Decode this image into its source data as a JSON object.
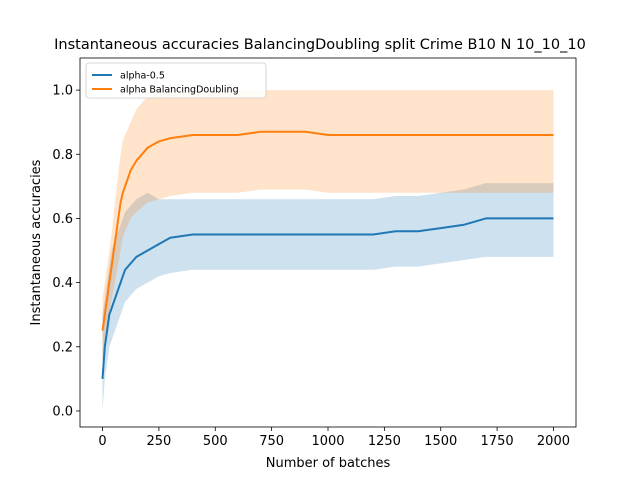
{
  "chart_data": {
    "type": "line",
    "title": "Instantaneous accuracies BalancingDoubling split Crime B10 N 10_10_10",
    "xlabel": "Number of batches",
    "ylabel": "Instantaneous accuracies",
    "xlim": [
      -100,
      2100
    ],
    "ylim": [
      -0.05,
      1.1
    ],
    "xticks": [
      0,
      250,
      500,
      750,
      1000,
      1250,
      1500,
      1750,
      2000
    ],
    "yticks": [
      0.0,
      0.2,
      0.4,
      0.6,
      0.8,
      1.0
    ],
    "xtick_labels": [
      "0",
      "250",
      "500",
      "750",
      "1000",
      "1250",
      "1500",
      "1750",
      "2000"
    ],
    "ytick_labels": [
      "0.0",
      "0.2",
      "0.4",
      "0.6",
      "0.8",
      "1.0"
    ],
    "grid": false,
    "legend_position": "top-left",
    "series": [
      {
        "name": "alpha-0.5",
        "color": "#1f77b4",
        "x": [
          0,
          10,
          20,
          30,
          40,
          50,
          60,
          70,
          80,
          90,
          100,
          125,
          150,
          200,
          250,
          300,
          400,
          500,
          600,
          700,
          800,
          900,
          1000,
          1100,
          1200,
          1300,
          1400,
          1500,
          1600,
          1700,
          1800,
          1900,
          2000
        ],
        "y": [
          0.1,
          0.2,
          0.25,
          0.3,
          0.32,
          0.34,
          0.36,
          0.38,
          0.4,
          0.42,
          0.44,
          0.46,
          0.48,
          0.5,
          0.52,
          0.54,
          0.55,
          0.55,
          0.55,
          0.55,
          0.55,
          0.55,
          0.55,
          0.55,
          0.55,
          0.56,
          0.56,
          0.57,
          0.58,
          0.6,
          0.6,
          0.6,
          0.6
        ],
        "band_low": [
          0.0,
          0.1,
          0.15,
          0.2,
          0.22,
          0.24,
          0.26,
          0.28,
          0.3,
          0.32,
          0.34,
          0.36,
          0.38,
          0.4,
          0.42,
          0.43,
          0.44,
          0.44,
          0.44,
          0.44,
          0.44,
          0.44,
          0.44,
          0.44,
          0.44,
          0.45,
          0.45,
          0.46,
          0.47,
          0.48,
          0.48,
          0.48,
          0.48
        ],
        "band_high": [
          0.3,
          0.35,
          0.4,
          0.45,
          0.5,
          0.52,
          0.54,
          0.56,
          0.58,
          0.6,
          0.62,
          0.64,
          0.66,
          0.68,
          0.66,
          0.66,
          0.66,
          0.66,
          0.66,
          0.66,
          0.66,
          0.66,
          0.66,
          0.66,
          0.66,
          0.67,
          0.67,
          0.68,
          0.69,
          0.71,
          0.71,
          0.71,
          0.71
        ]
      },
      {
        "name": "alpha BalancingDoubling",
        "color": "#ff7f0e",
        "x": [
          0,
          10,
          20,
          30,
          40,
          50,
          60,
          70,
          80,
          90,
          100,
          125,
          150,
          200,
          250,
          300,
          400,
          500,
          600,
          700,
          800,
          900,
          1000,
          1100,
          1200,
          1300,
          1400,
          1500,
          1600,
          1700,
          1800,
          1900,
          2000
        ],
        "y": [
          0.25,
          0.3,
          0.35,
          0.4,
          0.45,
          0.5,
          0.55,
          0.6,
          0.65,
          0.68,
          0.7,
          0.75,
          0.78,
          0.82,
          0.84,
          0.85,
          0.86,
          0.86,
          0.86,
          0.87,
          0.87,
          0.87,
          0.86,
          0.86,
          0.86,
          0.86,
          0.86,
          0.86,
          0.86,
          0.86,
          0.86,
          0.86,
          0.86
        ],
        "band_low": [
          0.15,
          0.2,
          0.25,
          0.3,
          0.35,
          0.38,
          0.42,
          0.46,
          0.5,
          0.54,
          0.56,
          0.6,
          0.62,
          0.65,
          0.66,
          0.67,
          0.68,
          0.68,
          0.68,
          0.69,
          0.69,
          0.69,
          0.68,
          0.68,
          0.68,
          0.68,
          0.68,
          0.68,
          0.68,
          0.68,
          0.68,
          0.68,
          0.68
        ],
        "band_high": [
          0.35,
          0.4,
          0.45,
          0.5,
          0.55,
          0.62,
          0.68,
          0.74,
          0.8,
          0.84,
          0.86,
          0.9,
          0.94,
          0.98,
          1.0,
          1.0,
          1.0,
          1.0,
          1.0,
          1.0,
          1.0,
          1.0,
          1.0,
          1.0,
          1.0,
          1.0,
          1.0,
          1.0,
          1.0,
          1.0,
          1.0,
          1.0,
          1.0
        ]
      }
    ]
  }
}
